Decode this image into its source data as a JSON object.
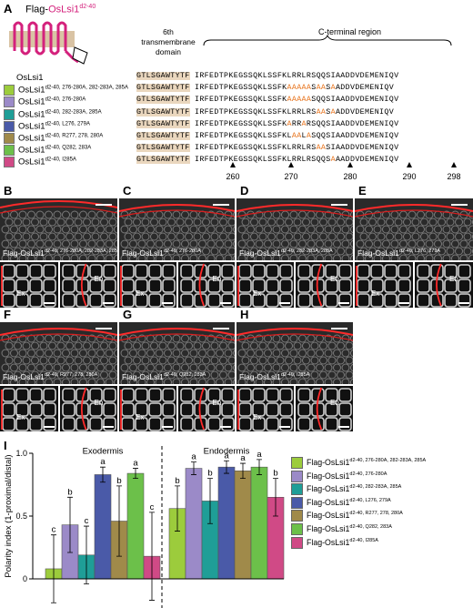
{
  "panels": {
    "A": "A",
    "B": "B",
    "C": "C",
    "D": "D",
    "E": "E",
    "F": "F",
    "G": "G",
    "H": "H",
    "I": "I"
  },
  "panelA": {
    "title_prefix": "Flag-",
    "title_gene": "OsLsi1",
    "title_sup": "d2-40",
    "tm_domain_label_1": "6th transmembrane",
    "tm_domain_label_2": "domain",
    "c_terminal_label": "C-terminal region",
    "legend": [
      {
        "name": "OsLsi1",
        "sup": "",
        "color": "",
        "tm": "GTLSGAWTYTF",
        "rest": "IRFEDTPKEGSSQKLSSFKLRRLRSQQSIAADDVDEMENIQV",
        "mut": []
      },
      {
        "name": "OsLsi1",
        "sup": "d2-40, 276-280A, 282-283A, 285A",
        "color": "#9ccc3c",
        "tm": "GTLSGAWTYTF",
        "rest": "IRFEDTPKEGSSQKLSSFKAAAAASAASAADDVDEMENIQV",
        "mut": [
          19,
          20,
          21,
          22,
          23,
          25,
          26,
          28
        ]
      },
      {
        "name": "OsLsi1",
        "sup": "d2-40, 276-280A",
        "color": "#9b8ac8",
        "tm": "GTLSGAWTYTF",
        "rest": "IRFEDTPKEGSSQKLSSFKAAAAASQQSIAADDVDEMENIQV",
        "mut": [
          19,
          20,
          21,
          22,
          23
        ]
      },
      {
        "name": "OsLsi1",
        "sup": "d2-40, 282-283A, 285A",
        "color": "#1f9e97",
        "tm": "GTLSGAWTYTF",
        "rest": "IRFEDTPKEGSSQKLSSFKLRRLRSAASAADDVDEMENIQV",
        "mut": [
          25,
          26,
          28
        ]
      },
      {
        "name": "OsLsi1",
        "sup": "d2-40, L276, 279A",
        "color": "#4a5aa8",
        "tm": "GTLSGAWTYTF",
        "rest": "IRFEDTPKEGSSQKLSSFKARRARSQQSIAADDVDEMENIQV",
        "mut": [
          19,
          22
        ]
      },
      {
        "name": "OsLsi1",
        "sup": "d2-40, R277, 278, 280A",
        "color": "#a08a4a",
        "tm": "GTLSGAWTYTF",
        "rest": "IRFEDTPKEGSSQKLSSFKLAALASQQSIAADDVDEMENIQV",
        "mut": [
          20,
          21,
          23
        ]
      },
      {
        "name": "OsLsi1",
        "sup": "d2-40, Q282, 283A",
        "color": "#6cc04a",
        "tm": "GTLSGAWTYTF",
        "rest": "IRFEDTPKEGSSQKLSSFKLRRLRSAASIAADDVDEMENIQV",
        "mut": [
          25,
          26
        ]
      },
      {
        "name": "OsLsi1",
        "sup": "d2-40, I285A",
        "color": "#d04a86",
        "tm": "GTLSGAWTYTF",
        "rest": "IRFEDTPKEGSSQKLSSFKLRRLRSQQSAAADDVDEMENIQV",
        "mut": [
          28
        ]
      }
    ],
    "positions": [
      "260",
      "270",
      "280",
      "290",
      "298"
    ]
  },
  "micrographs": [
    {
      "label": "B",
      "caption": "Flag-OsLsi1",
      "sup": "d2-40, 276-280A, 282-283A, 285A",
      "ex": "Ex",
      "en": "En"
    },
    {
      "label": "C",
      "caption": "Flag-OsLsi1",
      "sup": "d2-40, 276-280A",
      "ex": "Ex",
      "en": "En"
    },
    {
      "label": "D",
      "caption": "Flag-OsLsi1",
      "sup": "d2-40, 282-283A, 285A",
      "ex": "Ex",
      "en": "En"
    },
    {
      "label": "E",
      "caption": "Flag-OsLsi1",
      "sup": "d2-40, L276, 279A",
      "ex": "Ex",
      "en": "En"
    },
    {
      "label": "F",
      "caption": "Flag-OsLsi1",
      "sup": "d2-40, R277, 278, 280A",
      "ex": "Ex",
      "en": "En"
    },
    {
      "label": "G",
      "caption": "Flag-OsLsi1",
      "sup": "d2-40, Q282, 283A",
      "ex": "Ex",
      "en": "En"
    },
    {
      "label": "H",
      "caption": "Flag-OsLsi1",
      "sup": "d2-40, I285A",
      "ex": "Ex",
      "en": "En"
    }
  ],
  "chart_data": {
    "type": "bar",
    "ylabel": "Polarity index (1-proximal/distal)",
    "ylim": [
      0,
      1.0
    ],
    "yticks": [
      "0",
      "0.5",
      "1.0"
    ],
    "groups": [
      "Exodermis",
      "Endodermis"
    ],
    "series": [
      {
        "name": "Flag-OsLsi1",
        "sup": "d2-40, 276-280A, 282-283A, 285A",
        "color": "#9ccc3c",
        "values": [
          0.08,
          0.56
        ],
        "errors": [
          0.27,
          0.18
        ],
        "letters": [
          "c",
          "b"
        ]
      },
      {
        "name": "Flag-OsLsi1",
        "sup": "d2-40, 276-280A",
        "color": "#9b8ac8",
        "values": [
          0.43,
          0.88
        ],
        "errors": [
          0.22,
          0.05
        ],
        "letters": [
          "b",
          "a"
        ]
      },
      {
        "name": "Flag-OsLsi1",
        "sup": "d2-40, 282-283A, 285A",
        "color": "#1f9e97",
        "values": [
          0.19,
          0.62
        ],
        "errors": [
          0.23,
          0.18
        ],
        "letters": [
          "c",
          "b"
        ]
      },
      {
        "name": "Flag-OsLsi1",
        "sup": "d2-40, L276, 279A",
        "color": "#4a5aa8",
        "values": [
          0.83,
          0.89
        ],
        "errors": [
          0.06,
          0.05
        ],
        "letters": [
          "a",
          "a"
        ]
      },
      {
        "name": "Flag-OsLsi1",
        "sup": "d2-40, R277, 278, 280A",
        "color": "#a08a4a",
        "values": [
          0.46,
          0.86
        ],
        "errors": [
          0.28,
          0.06
        ],
        "letters": [
          "b",
          "a"
        ]
      },
      {
        "name": "Flag-OsLsi1",
        "sup": "d2-40, Q282, 283A",
        "color": "#6cc04a",
        "values": [
          0.84,
          0.89
        ],
        "errors": [
          0.04,
          0.06
        ],
        "letters": [
          "a",
          "a"
        ]
      },
      {
        "name": "Flag-OsLsi1",
        "sup": "d2-40, I285A",
        "color": "#d04a86",
        "values": [
          0.18,
          0.65
        ],
        "errors": [
          0.35,
          0.15
        ],
        "letters": [
          "c",
          "b"
        ]
      }
    ]
  }
}
